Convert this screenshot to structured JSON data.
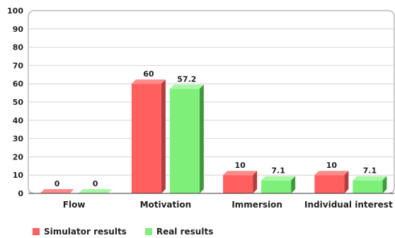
{
  "chart_data": {
    "type": "bar",
    "categories": [
      "Flow",
      "Motivation",
      "Immersion",
      "Individual interest"
    ],
    "series": [
      {
        "name": "Simulator results",
        "values": [
          0,
          60,
          10,
          10
        ],
        "labels": [
          "0",
          "60",
          "10",
          "10"
        ],
        "color": "#ff5f5f",
        "side": "#b53d3d",
        "top": "#ff8a8a"
      },
      {
        "name": "Real results",
        "values": [
          0,
          57.2,
          7.1,
          7.1
        ],
        "labels": [
          "0",
          "57.2",
          "7.1",
          "7.1"
        ],
        "color": "#7ef07a",
        "side": "#3f9a3c",
        "top": "#a8f7a4"
      }
    ],
    "yticks": [
      "0",
      "10",
      "20",
      "30",
      "40",
      "50",
      "60",
      "70",
      "80",
      "90",
      "100"
    ],
    "ylim": [
      0,
      100
    ],
    "grid": true,
    "legend_position": "bottom-left"
  }
}
